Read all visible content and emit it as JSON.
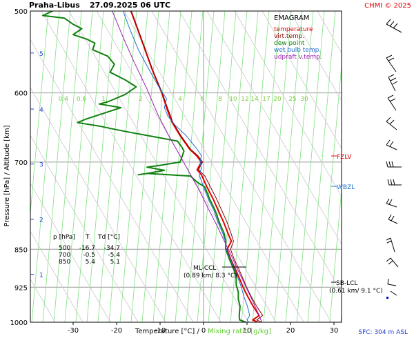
{
  "header": {
    "station": "Praha-Libus",
    "datetime": "27.09.2025 06 UTC",
    "credit": "CHMI © 2025"
  },
  "legend": {
    "title": "EMAGRAM",
    "items": [
      {
        "label": "temperature",
        "color": "#e00000"
      },
      {
        "label": "virt.temp.",
        "color": "#8b0000"
      },
      {
        "label": "dew point",
        "color": "#108010"
      },
      {
        "label": "wet bulb temp.",
        "color": "#1f6fd0"
      },
      {
        "label": "udpraft v.temp.",
        "color": "#9b1fb0"
      }
    ]
  },
  "axis_labels": {
    "y": "Pressure [hPa]  /  Altitude [km]",
    "x_main": "Temperature [°C]  /",
    "x_mix": "Mixing ratio [g/kg]"
  },
  "footer": {
    "sfc": "SFC: 304 m ASL"
  },
  "table": {
    "headers": [
      "p [hPa]",
      "T",
      "Td [°C]"
    ],
    "rows": [
      [
        "500",
        "-16.7",
        "-34.7"
      ],
      [
        "700",
        "-0.5",
        "-5.4"
      ],
      [
        "850",
        "5.4",
        "5.1"
      ]
    ]
  },
  "annotations": {
    "fzlv": "FZLV",
    "wbzl": "WBZL",
    "ml_ccl": "ML-CCL",
    "ml_ccl_detail": "(0.89 km/ 8.3 °C)",
    "sb_lcl": "SB-LCL",
    "sb_lcl_detail": "(0.61 km/ 9.1 °C)"
  },
  "chart_data": {
    "type": "line",
    "title": "Praha-Libus 27.09.2025 06 UTC",
    "xlabel": "Temperature [°C]",
    "ylabel": "Pressure [hPa]",
    "x_range": [
      -40,
      35
    ],
    "y_range": [
      500,
      1000
    ],
    "y_scale": "log",
    "x_ticks": [
      -30,
      -20,
      -10,
      0,
      10,
      20,
      30
    ],
    "pressure_ticks": [
      500,
      600,
      700,
      850,
      925,
      1000
    ],
    "altitude_ticks": [
      {
        "km": "5",
        "p": 549
      },
      {
        "km": "4",
        "p": 622
      },
      {
        "km": "3",
        "p": 703
      },
      {
        "km": "2",
        "p": 795
      },
      {
        "km": "1",
        "p": 899
      }
    ],
    "mixing_ratio_lines": [
      "0.4",
      "0.6",
      "1",
      "2",
      "4",
      "6",
      "8",
      "10",
      "12",
      "14",
      "17",
      "20",
      "25",
      "30"
    ],
    "series": [
      {
        "name": "temperature",
        "color": "#e00000",
        "points": [
          [
            -16.7,
            500
          ],
          [
            -14.5,
            530
          ],
          [
            -11.8,
            570
          ],
          [
            -9.6,
            600
          ],
          [
            -8.5,
            620
          ],
          [
            -7.3,
            640
          ],
          [
            -5.4,
            660
          ],
          [
            -3.2,
            680
          ],
          [
            -1.6,
            690
          ],
          [
            -0.5,
            700
          ],
          [
            -1.5,
            712
          ],
          [
            -0.5,
            720
          ],
          [
            0.8,
            740
          ],
          [
            2.2,
            760
          ],
          [
            3.4,
            780
          ],
          [
            4.6,
            800
          ],
          [
            5.6,
            820
          ],
          [
            6.4,
            835
          ],
          [
            5.4,
            850
          ],
          [
            6.3,
            870
          ],
          [
            7.4,
            890
          ],
          [
            8.4,
            910
          ],
          [
            9.1,
            925
          ],
          [
            10.2,
            945
          ],
          [
            11.4,
            965
          ],
          [
            12.8,
            985
          ],
          [
            11.3,
            995
          ],
          [
            12.5,
            1000
          ]
        ]
      },
      {
        "name": "virt.temp.",
        "color": "#8b0000",
        "points": [
          [
            -16.6,
            500
          ],
          [
            -14.4,
            530
          ],
          [
            -11.7,
            570
          ],
          [
            -9.5,
            600
          ],
          [
            -8.3,
            620
          ],
          [
            -7.1,
            640
          ],
          [
            -5.2,
            660
          ],
          [
            -3.0,
            680
          ],
          [
            -1.3,
            690
          ],
          [
            -0.2,
            700
          ],
          [
            -1.2,
            712
          ],
          [
            0.3,
            722
          ],
          [
            1.6,
            740
          ],
          [
            3.0,
            760
          ],
          [
            4.2,
            780
          ],
          [
            5.4,
            800
          ],
          [
            6.3,
            820
          ],
          [
            6.9,
            835
          ],
          [
            6.2,
            850
          ],
          [
            7.1,
            870
          ],
          [
            8.2,
            890
          ],
          [
            9.2,
            910
          ],
          [
            9.9,
            925
          ],
          [
            11.0,
            945
          ],
          [
            12.2,
            965
          ],
          [
            13.6,
            985
          ],
          [
            12.2,
            995
          ],
          [
            13.4,
            1000
          ]
        ]
      },
      {
        "name": "dew point",
        "color": "#108010",
        "points": [
          [
            -34.7,
            500
          ],
          [
            -37.0,
            505
          ],
          [
            -32.0,
            508
          ],
          [
            -30.0,
            515
          ],
          [
            -28.0,
            520
          ],
          [
            -30.0,
            527
          ],
          [
            -27.0,
            532
          ],
          [
            -25.0,
            537
          ],
          [
            -25.5,
            545
          ],
          [
            -22.0,
            553
          ],
          [
            -20.5,
            563
          ],
          [
            -21.5,
            573
          ],
          [
            -18.0,
            583
          ],
          [
            -15.5,
            592
          ],
          [
            -18.0,
            602
          ],
          [
            -22.0,
            612
          ],
          [
            -24.0,
            615
          ],
          [
            -19.0,
            620
          ],
          [
            -22.0,
            626
          ],
          [
            -27.0,
            636
          ],
          [
            -29.0,
            641
          ],
          [
            -27.0,
            643
          ],
          [
            -24.0,
            646
          ],
          [
            -21.0,
            650
          ],
          [
            -17.0,
            655
          ],
          [
            -11.0,
            662
          ],
          [
            -6.0,
            668
          ],
          [
            -5.0,
            677
          ],
          [
            -4.5,
            683
          ],
          [
            -5.4,
            700
          ],
          [
            -10.0,
            705
          ],
          [
            -13.0,
            708
          ],
          [
            -9.0,
            713
          ],
          [
            -13.0,
            718
          ],
          [
            -15.0,
            720
          ],
          [
            -13.0,
            718
          ],
          [
            -8.0,
            720
          ],
          [
            -3.0,
            722
          ],
          [
            -1.5,
            732
          ],
          [
            0.3,
            740
          ],
          [
            1.4,
            760
          ],
          [
            2.7,
            780
          ],
          [
            3.6,
            800
          ],
          [
            4.7,
            820
          ],
          [
            5.1,
            835
          ],
          [
            5.1,
            850
          ],
          [
            6.0,
            870
          ],
          [
            7.0,
            890
          ],
          [
            7.5,
            905
          ],
          [
            7.5,
            920
          ],
          [
            8.0,
            935
          ],
          [
            8.0,
            950
          ],
          [
            8.4,
            965
          ],
          [
            8.2,
            985
          ],
          [
            8.3,
            995
          ],
          [
            9.8,
            1000
          ]
        ]
      },
      {
        "name": "wet bulb temp.",
        "color": "#1f6fd0",
        "points": [
          [
            -18.5,
            500
          ],
          [
            -17.0,
            520
          ],
          [
            -15.0,
            545
          ],
          [
            -12.5,
            570
          ],
          [
            -10.0,
            595
          ],
          [
            -8.5,
            608
          ],
          [
            -9.0,
            620
          ],
          [
            -8.2,
            632
          ],
          [
            -6.5,
            645
          ],
          [
            -4.0,
            660
          ],
          [
            -1.5,
            680
          ],
          [
            -0.5,
            690
          ],
          [
            -0.8,
            700
          ],
          [
            -0.5,
            710
          ],
          [
            -1.0,
            720
          ],
          [
            -0.5,
            730
          ],
          [
            0.0,
            740
          ],
          [
            1.1,
            760
          ],
          [
            2.4,
            780
          ],
          [
            3.3,
            800
          ],
          [
            4.4,
            820
          ],
          [
            5.0,
            835
          ],
          [
            5.2,
            850
          ],
          [
            6.2,
            870
          ],
          [
            7.2,
            890
          ],
          [
            8.1,
            910
          ],
          [
            8.7,
            925
          ],
          [
            9.3,
            945
          ],
          [
            10.1,
            965
          ],
          [
            10.6,
            985
          ],
          [
            10.0,
            995
          ],
          [
            10.4,
            1000
          ]
        ]
      },
      {
        "name": "udpraft v.temp.",
        "color": "#9b1fb0",
        "points": [
          [
            -21.0,
            500
          ],
          [
            -18.5,
            530
          ],
          [
            -16.0,
            560
          ],
          [
            -13.0,
            595
          ],
          [
            -10.5,
            630
          ],
          [
            -8.0,
            660
          ],
          [
            -5.0,
            695
          ],
          [
            -3.0,
            720
          ],
          [
            -1.0,
            745
          ],
          [
            1.0,
            775
          ],
          [
            3.0,
            805
          ],
          [
            4.8,
            835
          ],
          [
            6.3,
            860
          ],
          [
            7.6,
            885
          ],
          [
            9.0,
            910
          ],
          [
            10.3,
            935
          ],
          [
            11.6,
            960
          ],
          [
            12.8,
            985
          ],
          [
            13.4,
            1000
          ]
        ]
      }
    ],
    "grid": true
  }
}
